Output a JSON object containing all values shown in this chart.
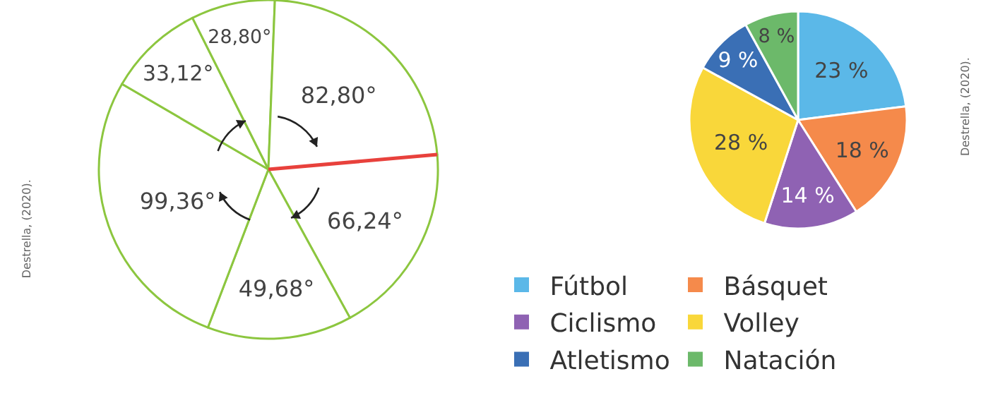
{
  "chart_data": [
    {
      "type": "pie",
      "categories": [
        null,
        null,
        null,
        null,
        null,
        null
      ],
      "values": [
        66.24,
        49.68,
        99.36,
        33.12,
        28.8,
        82.8
      ],
      "colors": [
        "#ffffff",
        "#ffffff",
        "#ffffff",
        "#ffffff",
        "#ffffff",
        "#ffffff"
      ],
      "value_labels": [
        "66,24°",
        "49,68°",
        "99,36°",
        "33,12°",
        "28,80°",
        "82,80°"
      ],
      "legend": false,
      "annotations": [
        "Destrella, (2020)."
      ]
    },
    {
      "type": "pie",
      "categories": [
        "Fútbol",
        "Básquet",
        "Ciclismo",
        "Volley",
        "Atletismo",
        "Natación"
      ],
      "values": [
        23,
        18,
        14,
        28,
        9,
        8
      ],
      "colors": [
        "#5bb8e8",
        "#f58a4b",
        "#8f62b3",
        "#f9d73a",
        "#3a6fb5",
        "#6cb96a"
      ],
      "value_labels": [
        "23 %",
        "18 %",
        "14 %",
        "28 %",
        "9 %",
        "8 %"
      ],
      "legend": "bottom",
      "annotations": [
        "Destrella, (2020)."
      ]
    }
  ]
}
